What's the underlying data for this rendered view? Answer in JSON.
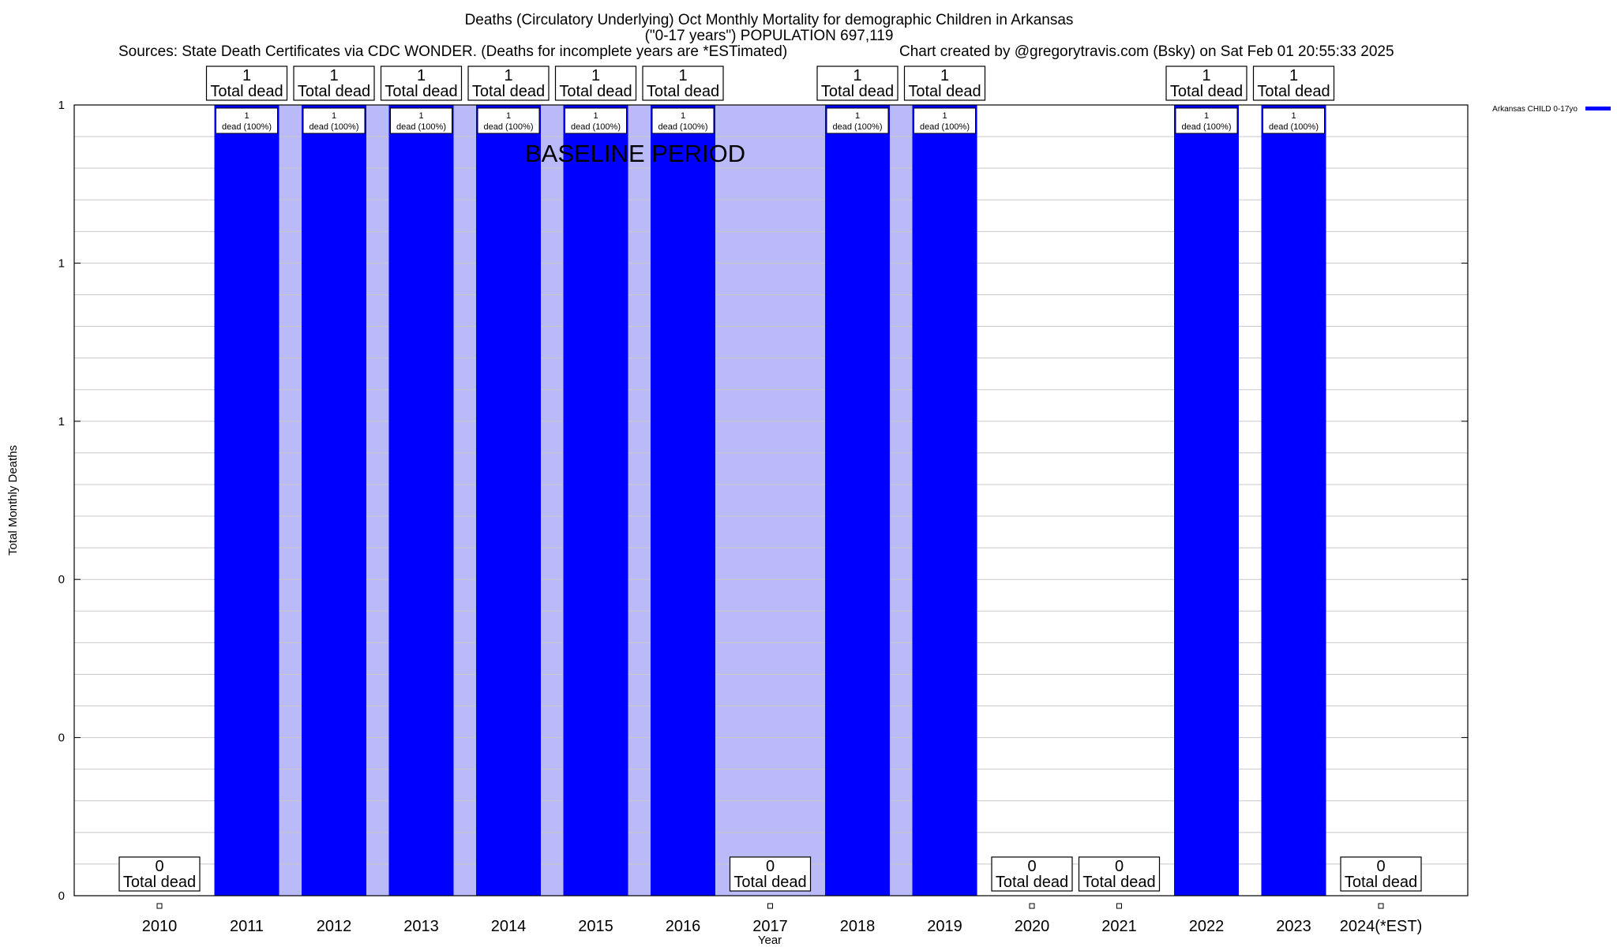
{
  "chart_data": {
    "type": "bar",
    "title": "Deaths (Circulatory Underlying) Oct Monthly Mortality for demographic Children in Arkansas",
    "subtitle": "(\"0-17 years\") POPULATION 697,119",
    "sources": "Sources: State Death Certificates via CDC WONDER. (Deaths for incomplete years are *ESTimated)",
    "credit": "Chart created by @gregorytravis.com (Bsky) on Sat Feb 01 20:55:33 2025",
    "xlabel": "Year",
    "ylabel": "Total Monthly Deaths",
    "ylim": [
      0,
      1
    ],
    "y_tick_labels": [
      "0",
      "0",
      "0",
      "1",
      "1",
      "1"
    ],
    "grid": true,
    "legend": {
      "placement": "top-right",
      "entries": [
        "Arkansas CHILD 0-17yo"
      ]
    },
    "baseline_label": "BASELINE PERIOD",
    "baseline_range": [
      "2011",
      "2019"
    ],
    "categories": [
      "2010",
      "2011",
      "2012",
      "2013",
      "2014",
      "2015",
      "2016",
      "2017",
      "2018",
      "2019",
      "2020",
      "2021",
      "2022",
      "2023",
      "2024(*EST)"
    ],
    "series": [
      {
        "name": "Arkansas CHILD 0-17yo",
        "values": [
          0,
          1,
          1,
          1,
          1,
          1,
          1,
          0,
          1,
          1,
          0,
          0,
          1,
          1,
          0
        ]
      }
    ],
    "total_label_suffix": "Total dead",
    "inner_label_suffix": "dead (100%)",
    "colors": {
      "bar": "#0000ff",
      "baseline_band": "#babaf8",
      "grid": "#c8c8c8"
    }
  }
}
